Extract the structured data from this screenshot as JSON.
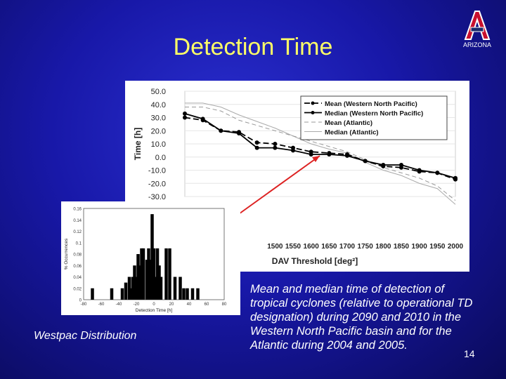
{
  "slide": {
    "title": "Detection Time",
    "logo_text": "ARIZONA",
    "caption_left": "Westpac Distribution",
    "caption_right": "Mean and median time of detection of tropical cyclones (relative to operational TD designation) during 2090 and 2010 in the Western North Pacific basin and for the Atlantic during 2004 and 2005.",
    "page_number": "14",
    "colors": {
      "title": "#ffff66",
      "background": "#1818a8",
      "arrow": "#dd2222",
      "logo": "#c8102e"
    }
  },
  "chart_data": [
    {
      "type": "line",
      "xlabel": "DAV Threshold [deg²]",
      "ylabel": "Time [h]",
      "ylim": [
        -30,
        50
      ],
      "xlim": [
        1250,
        2000
      ],
      "y_ticks": [
        "50.0",
        "40.0",
        "30.0",
        "20.0",
        "10.0",
        "0.0",
        "-10.0",
        "-20.0",
        "-30.0"
      ],
      "x_ticks": [
        "1500",
        "1550",
        "1600",
        "1650",
        "1700",
        "1750",
        "1800",
        "1850",
        "1900",
        "1950",
        "2000"
      ],
      "x": [
        1250,
        1300,
        1350,
        1400,
        1450,
        1500,
        1550,
        1600,
        1650,
        1700,
        1750,
        1800,
        1850,
        1900,
        1950,
        2000
      ],
      "legend_position": "top-right",
      "series": [
        {
          "name": "Mean (Western North Pacific)",
          "style": "dashed-marker",
          "values": [
            30,
            28,
            20,
            19,
            11,
            10,
            7,
            4,
            3,
            2,
            -3,
            -7,
            -8,
            -11,
            -12,
            -17
          ]
        },
        {
          "name": "Median (Western North Pacific)",
          "style": "solid-marker",
          "values": [
            33,
            29,
            20,
            18,
            7,
            7,
            5,
            2,
            2,
            1,
            -3,
            -6,
            -6,
            -10,
            -12,
            -16
          ]
        },
        {
          "name": "Mean (Atlantic)",
          "style": "dashed-gray",
          "values": [
            38,
            38,
            35,
            28,
            24,
            20,
            16,
            12,
            8,
            4,
            -2,
            -8,
            -12,
            -16,
            -22,
            -33
          ]
        },
        {
          "name": "Median (Atlantic)",
          "style": "solid-gray",
          "values": [
            41,
            41,
            38,
            32,
            27,
            22,
            16,
            10,
            6,
            3,
            -4,
            -10,
            -14,
            -20,
            -24,
            -36
          ]
        }
      ]
    },
    {
      "type": "bar",
      "xlabel": "Detection Time [h]",
      "ylabel": "% Occurrences",
      "xlim": [
        -80,
        80
      ],
      "ylim": [
        0,
        0.16
      ],
      "y_ticks": [
        "0.16",
        "0.14",
        "0.12",
        "0.1",
        "0.08",
        "0.06",
        "0.04",
        "0.02",
        "0"
      ],
      "x_ticks": [
        "-80",
        "-60",
        "-40",
        "-20",
        "0",
        "20",
        "40",
        "60",
        "80"
      ],
      "bin_centers": [
        -70,
        -48,
        -36,
        -32,
        -28,
        -26,
        -24,
        -22,
        -20,
        -18,
        -16,
        -14,
        -12,
        -8,
        -6,
        -4,
        -2,
        0,
        2,
        4,
        6,
        8,
        14,
        18,
        24,
        30,
        34,
        38,
        44,
        50
      ],
      "values": [
        0.02,
        0.02,
        0.02,
        0.03,
        0.04,
        0.02,
        0.04,
        0.06,
        0.04,
        0.08,
        0.06,
        0.09,
        0.09,
        0.07,
        0.09,
        0.07,
        0.15,
        0.09,
        0.04,
        0.09,
        0.06,
        0.04,
        0.09,
        0.09,
        0.04,
        0.04,
        0.02,
        0.02,
        0.02,
        0.02
      ]
    }
  ]
}
